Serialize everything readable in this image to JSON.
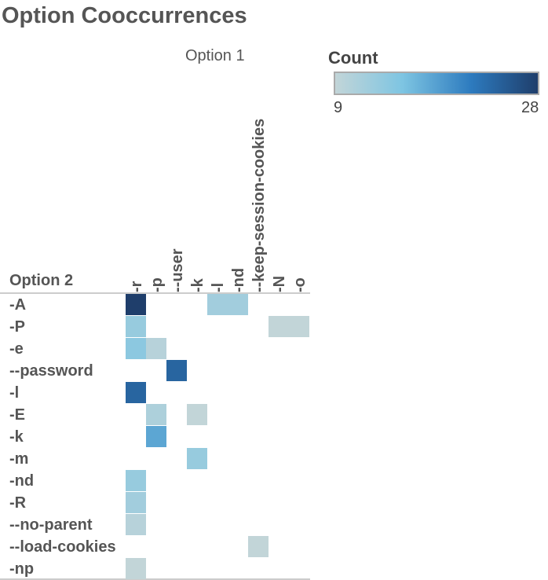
{
  "chart_data": {
    "type": "heatmap",
    "title": "Option Cooccurrences",
    "x_header": "Option 1",
    "y_header": "Option 2",
    "legend": {
      "title": "Count",
      "min": 9,
      "max": 28,
      "colors": [
        "#c2d5d8",
        "#7ec5e2",
        "#2d7bbf",
        "#1f3e6b"
      ]
    },
    "columns": [
      "-r",
      "-p",
      "--user",
      "-k",
      "-l",
      "-nd",
      "--keep-session-cookies",
      "-N",
      "-o"
    ],
    "rows": [
      "-A",
      "-P",
      "-e",
      "--password",
      "-l",
      "-E",
      "-k",
      "-m",
      "-nd",
      "-R",
      "--no-parent",
      "--load-cookies",
      "-np"
    ],
    "cells": [
      {
        "row": "-A",
        "col": "-r",
        "value": 28
      },
      {
        "row": "-A",
        "col": "-l",
        "value": 12
      },
      {
        "row": "-A",
        "col": "-nd",
        "value": 12
      },
      {
        "row": "-P",
        "col": "-r",
        "value": 13
      },
      {
        "row": "-P",
        "col": "-N",
        "value": 9
      },
      {
        "row": "-P",
        "col": "-o",
        "value": 9
      },
      {
        "row": "-e",
        "col": "-r",
        "value": 14
      },
      {
        "row": "-e",
        "col": "-p",
        "value": 10
      },
      {
        "row": "--password",
        "col": "--user",
        "value": 24
      },
      {
        "row": "-l",
        "col": "-r",
        "value": 24
      },
      {
        "row": "-E",
        "col": "-p",
        "value": 11
      },
      {
        "row": "-E",
        "col": "-k",
        "value": 9
      },
      {
        "row": "-k",
        "col": "-p",
        "value": 18
      },
      {
        "row": "-m",
        "col": "-k",
        "value": 13
      },
      {
        "row": "-nd",
        "col": "-r",
        "value": 13
      },
      {
        "row": "-R",
        "col": "-r",
        "value": 12
      },
      {
        "row": "--no-parent",
        "col": "-r",
        "value": 10
      },
      {
        "row": "--load-cookies",
        "col": "--keep-session-cookies",
        "value": 9
      },
      {
        "row": "-np",
        "col": "-r",
        "value": 9
      }
    ]
  }
}
